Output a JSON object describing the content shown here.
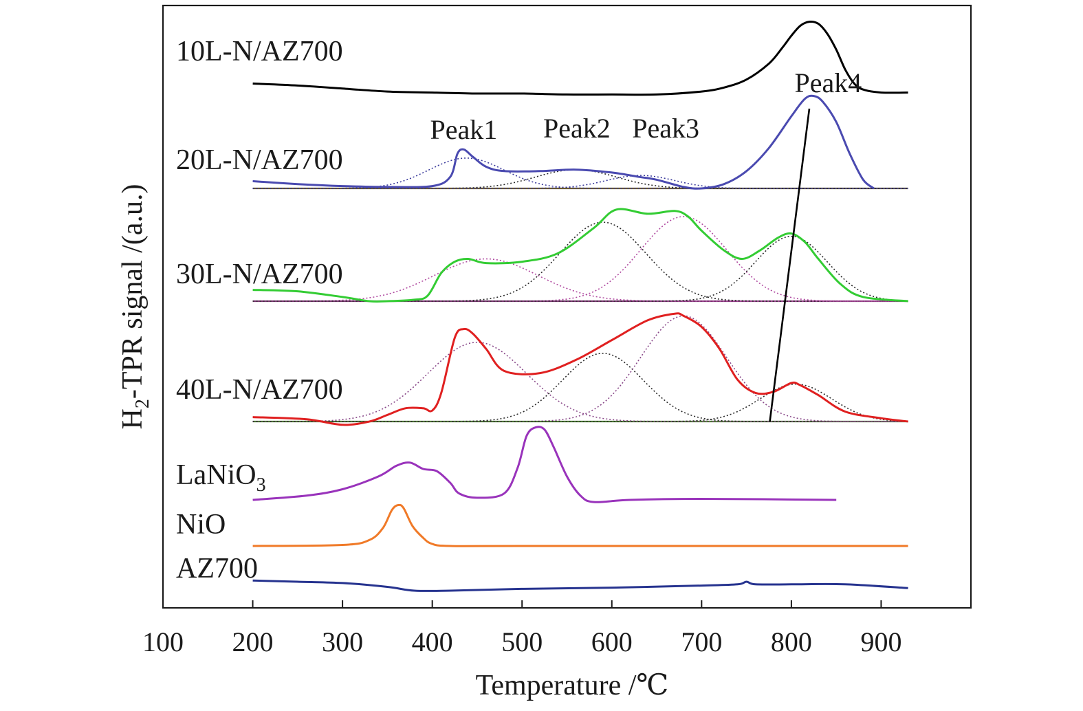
{
  "chart_data": {
    "type": "line",
    "title": "",
    "xlabel": "Temperature /℃",
    "ylabel": {
      "main": "H",
      "sub": "2",
      "rest": "-TPR signal /(a.u.)"
    },
    "xlim": [
      100,
      1000
    ],
    "xticks": [
      100,
      200,
      300,
      400,
      500,
      600,
      700,
      800,
      900
    ],
    "grid": false,
    "legend": "none (curves labelled directly)",
    "peak_labels": [
      {
        "text": "Peak1",
        "x": 435
      },
      {
        "text": "Peak2",
        "x": 561
      },
      {
        "text": "Peak3",
        "x": 660
      },
      {
        "text": "Peak4",
        "x": 841
      }
    ],
    "peak4_trend_line": [
      [
        776,
        -0.2
      ],
      [
        820,
        9.9
      ]
    ],
    "series": [
      {
        "name": "10L-N/AZ700",
        "label": {
          "main": "10L-N/AZ700"
        },
        "color": "#000000",
        "x": [
          200,
          250,
          300,
          350,
          400,
          450,
          500,
          550,
          600,
          650,
          700,
          725,
          750,
          775,
          790,
          800,
          810,
          820,
          830,
          840,
          850,
          860,
          870,
          880,
          900,
          930
        ],
        "y": [
          0.5,
          0.4,
          0.25,
          0.1,
          0.05,
          0.0,
          0.0,
          -0.05,
          -0.05,
          -0.05,
          0.1,
          0.3,
          0.7,
          1.5,
          2.3,
          2.9,
          3.4,
          3.6,
          3.5,
          3.0,
          2.2,
          1.2,
          0.5,
          0.2,
          0.05,
          0.05
        ]
      },
      {
        "name": "20L-N/AZ700",
        "label": {
          "main": "20L-N/AZ700"
        },
        "color": "#4a4ab0",
        "x": [
          200,
          250,
          300,
          350,
          400,
          420,
          428,
          435,
          445,
          460,
          480,
          520,
          560,
          600,
          630,
          650,
          680,
          700,
          725,
          750,
          775,
          800,
          815,
          825,
          835,
          850,
          865,
          880,
          892
        ],
        "y": [
          0.25,
          0.15,
          0.08,
          0.05,
          0.08,
          0.4,
          1.2,
          1.35,
          1.1,
          0.75,
          0.6,
          0.6,
          0.65,
          0.55,
          0.4,
          0.3,
          0.05,
          0.0,
          0.15,
          0.6,
          1.4,
          2.5,
          3.1,
          3.2,
          3.0,
          2.3,
          1.2,
          0.3,
          0.0
        ]
      },
      {
        "name": "30L-N/AZ700",
        "label": {
          "main": "30L-N/AZ700"
        },
        "color": "#33cc33",
        "x": [
          200,
          250,
          300,
          330,
          350,
          380,
          395,
          410,
          425,
          440,
          460,
          500,
          540,
          580,
          605,
          640,
          670,
          685,
          700,
          725,
          745,
          765,
          785,
          800,
          815,
          830,
          855,
          880,
          930
        ],
        "y": [
          0.4,
          0.35,
          0.15,
          0.0,
          0.0,
          0.05,
          0.2,
          1.0,
          1.4,
          1.5,
          1.35,
          1.4,
          1.7,
          2.6,
          3.25,
          3.1,
          3.2,
          3.0,
          2.5,
          1.8,
          1.5,
          1.8,
          2.25,
          2.4,
          2.1,
          1.5,
          0.6,
          0.15,
          0.0
        ]
      },
      {
        "name": "40L-N/AZ700",
        "label": {
          "main": "40L-N/AZ700"
        },
        "color": "#e02020",
        "x": [
          200,
          260,
          300,
          330,
          350,
          370,
          390,
          400,
          410,
          425,
          435,
          445,
          460,
          480,
          520,
          560,
          600,
          640,
          670,
          680,
          700,
          720,
          740,
          760,
          780,
          800,
          810,
          830,
          860,
          900,
          930
        ],
        "y": [
          0.2,
          0.1,
          -0.15,
          0.0,
          0.3,
          0.6,
          0.6,
          0.5,
          1.3,
          3.8,
          4.2,
          4.0,
          3.3,
          2.3,
          2.2,
          2.8,
          3.7,
          4.6,
          4.9,
          4.8,
          4.3,
          3.3,
          1.9,
          1.3,
          1.35,
          1.75,
          1.65,
          1.2,
          0.45,
          0.15,
          0.0
        ]
      },
      {
        "name": "LaNiO3",
        "label": {
          "main": "LaNiO",
          "sub": "3"
        },
        "color": "#9933bb",
        "x": [
          200,
          260,
          300,
          340,
          360,
          375,
          390,
          405,
          420,
          430,
          450,
          480,
          495,
          505,
          515,
          525,
          535,
          550,
          565,
          580,
          620,
          700,
          850
        ],
        "y": [
          0.0,
          0.2,
          0.5,
          1.1,
          1.6,
          1.75,
          1.45,
          1.35,
          0.8,
          0.3,
          0.1,
          0.3,
          1.5,
          3.0,
          3.4,
          3.3,
          2.5,
          1.1,
          0.2,
          -0.1,
          0.0,
          0.05,
          0.0
        ]
      },
      {
        "name": "NiO",
        "label": {
          "main": "NiO"
        },
        "color": "#f07a28",
        "x": [
          200,
          300,
          330,
          345,
          355,
          362,
          368,
          378,
          390,
          400,
          420,
          500,
          930
        ],
        "y": [
          0.0,
          0.05,
          0.3,
          0.9,
          1.8,
          2.05,
          1.9,
          1.0,
          0.4,
          0.1,
          0.0,
          0.0,
          0.0
        ]
      },
      {
        "name": "AZ700",
        "label": {
          "main": "AZ700"
        },
        "color": "#26338f",
        "x": [
          200,
          250,
          300,
          350,
          380,
          420,
          500,
          600,
          700,
          740,
          750,
          760,
          800,
          860,
          930
        ],
        "y": [
          0.4,
          0.35,
          0.3,
          0.15,
          0.0,
          0.0,
          0.07,
          0.12,
          0.2,
          0.25,
          0.35,
          0.25,
          0.25,
          0.25,
          0.1
        ]
      }
    ]
  }
}
